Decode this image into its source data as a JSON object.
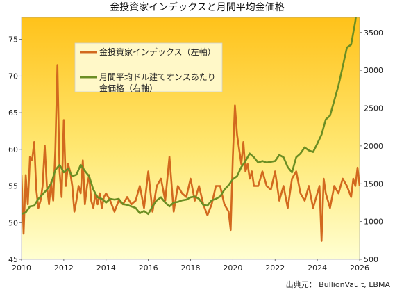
{
  "chart_data": {
    "type": "line",
    "title": "金投資家インデックスと月間平均金価格",
    "source": "出典元： BullionVault, LBMA",
    "x_ticks": [
      "2010",
      "2012",
      "2014",
      "2016",
      "2018",
      "2020",
      "2022",
      "2024",
      "2026"
    ],
    "y_left_ticks": [
      "45",
      "50",
      "55",
      "60",
      "65",
      "70",
      "75"
    ],
    "y_right_ticks": [
      "500",
      "1000",
      "1500",
      "2000",
      "2500",
      "3000",
      "3500"
    ],
    "y_left_range": [
      45,
      78
    ],
    "y_right_range": [
      500,
      3700
    ],
    "x_range": [
      2010,
      2026
    ],
    "grid": false,
    "legend_position": "top-left",
    "series": [
      {
        "name": "金投資家インデックス（左軸）",
        "axis": "left",
        "color": "#d2691e",
        "x": [
          2010.0,
          2010.1,
          2010.2,
          2010.3,
          2010.4,
          2010.5,
          2010.6,
          2010.7,
          2010.8,
          2010.9,
          2011.0,
          2011.1,
          2011.2,
          2011.3,
          2011.4,
          2011.5,
          2011.6,
          2011.7,
          2011.8,
          2011.9,
          2012.0,
          2012.1,
          2012.2,
          2012.3,
          2012.4,
          2012.5,
          2012.6,
          2012.7,
          2012.8,
          2012.9,
          2013.0,
          2013.1,
          2013.2,
          2013.3,
          2013.4,
          2013.5,
          2013.6,
          2013.7,
          2013.8,
          2013.9,
          2014.0,
          2014.2,
          2014.4,
          2014.6,
          2014.8,
          2015.0,
          2015.2,
          2015.4,
          2015.6,
          2015.8,
          2016.0,
          2016.2,
          2016.4,
          2016.6,
          2016.8,
          2017.0,
          2017.2,
          2017.4,
          2017.6,
          2017.8,
          2018.0,
          2018.2,
          2018.4,
          2018.6,
          2018.8,
          2019.0,
          2019.2,
          2019.4,
          2019.6,
          2019.8,
          2019.9,
          2020.0,
          2020.1,
          2020.2,
          2020.3,
          2020.4,
          2020.5,
          2020.6,
          2020.7,
          2020.8,
          2020.9,
          2021.0,
          2021.2,
          2021.4,
          2021.6,
          2021.8,
          2022.0,
          2022.2,
          2022.4,
          2022.6,
          2022.8,
          2023.0,
          2023.2,
          2023.4,
          2023.6,
          2023.8,
          2024.0,
          2024.1,
          2024.2,
          2024.3,
          2024.4,
          2024.6,
          2024.8,
          2025.0,
          2025.2,
          2025.4,
          2025.6,
          2025.7,
          2025.8,
          2025.9,
          2026.0
        ],
        "values": [
          56.5,
          48.5,
          56.5,
          52.5,
          59,
          58.5,
          61,
          54.5,
          52,
          53,
          55,
          60.5,
          55,
          52.5,
          55.5,
          53,
          60,
          71.5,
          57,
          53.5,
          64,
          55,
          58,
          57,
          55,
          51.5,
          53,
          55,
          54,
          58.5,
          52.5,
          55,
          56.5,
          53,
          52,
          54,
          52.5,
          54,
          52,
          53.5,
          54,
          53,
          51.5,
          53,
          52.5,
          53.5,
          52.5,
          53,
          55,
          52,
          57,
          51.5,
          55,
          56,
          53,
          59,
          51.5,
          55,
          54,
          53.5,
          56,
          53,
          55,
          52.5,
          51,
          52.5,
          55,
          55,
          52.5,
          51.5,
          49,
          59,
          66,
          62,
          60,
          58,
          61,
          57,
          58,
          56,
          57,
          55,
          55,
          57,
          55,
          54.5,
          57,
          53,
          55,
          52,
          56,
          57,
          54,
          53,
          55,
          52,
          54,
          55,
          47.5,
          56,
          54,
          52,
          55,
          54,
          56,
          55,
          53.5,
          56,
          55,
          57.5,
          55
        ]
      },
      {
        "name": "月間平均ドル建てオンスあたり金価格（右軸）",
        "legend_lines": [
          "月間平均ドル建てオンスあたり",
          "金価格（右軸）"
        ],
        "axis": "right",
        "color": "#6b8e23",
        "x": [
          2010.0,
          2010.2,
          2010.4,
          2010.6,
          2010.8,
          2011.0,
          2011.2,
          2011.4,
          2011.6,
          2011.8,
          2012.0,
          2012.2,
          2012.4,
          2012.6,
          2012.8,
          2013.0,
          2013.2,
          2013.4,
          2013.6,
          2013.8,
          2014.0,
          2014.2,
          2014.4,
          2014.6,
          2014.8,
          2015.0,
          2015.2,
          2015.4,
          2015.6,
          2015.8,
          2016.0,
          2016.2,
          2016.4,
          2016.6,
          2016.8,
          2017.0,
          2017.2,
          2017.4,
          2017.6,
          2017.8,
          2018.0,
          2018.2,
          2018.4,
          2018.6,
          2018.8,
          2019.0,
          2019.2,
          2019.4,
          2019.6,
          2019.8,
          2020.0,
          2020.2,
          2020.4,
          2020.6,
          2020.8,
          2021.0,
          2021.2,
          2021.4,
          2021.6,
          2021.8,
          2022.0,
          2022.2,
          2022.4,
          2022.6,
          2022.8,
          2023.0,
          2023.2,
          2023.4,
          2023.6,
          2023.8,
          2024.0,
          2024.2,
          2024.4,
          2024.6,
          2024.8,
          2025.0,
          2025.2,
          2025.4,
          2025.6,
          2025.8,
          2025.9,
          2026.0
        ],
        "values": [
          1100,
          1120,
          1200,
          1210,
          1300,
          1360,
          1420,
          1500,
          1680,
          1750,
          1650,
          1700,
          1600,
          1620,
          1750,
          1670,
          1600,
          1420,
          1320,
          1300,
          1250,
          1300,
          1290,
          1300,
          1230,
          1220,
          1200,
          1180,
          1110,
          1140,
          1100,
          1200,
          1280,
          1320,
          1250,
          1200,
          1250,
          1260,
          1280,
          1290,
          1320,
          1330,
          1300,
          1220,
          1210,
          1280,
          1300,
          1330,
          1420,
          1480,
          1560,
          1600,
          1720,
          1800,
          1900,
          1850,
          1780,
          1800,
          1780,
          1790,
          1800,
          1880,
          1850,
          1720,
          1650,
          1850,
          1900,
          1980,
          1940,
          1920,
          2030,
          2150,
          2350,
          2400,
          2600,
          2800,
          3050,
          3300,
          3340,
          3650,
          3900,
          4050
        ]
      }
    ]
  }
}
